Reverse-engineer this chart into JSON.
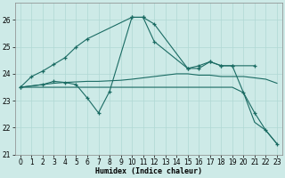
{
  "xlabel": "Humidex (Indice chaleur)",
  "xlim": [
    -0.5,
    23.5
  ],
  "ylim": [
    21.0,
    26.65
  ],
  "yticks": [
    21,
    22,
    23,
    24,
    25,
    26
  ],
  "xticks": [
    0,
    1,
    2,
    3,
    4,
    5,
    6,
    7,
    8,
    9,
    10,
    11,
    12,
    13,
    14,
    15,
    16,
    17,
    18,
    19,
    20,
    21,
    22,
    23
  ],
  "bg_color": "#cdeae7",
  "grid_color": "#b0d8d4",
  "line_color": "#1a6b63",
  "lineA_x": [
    0,
    1,
    2,
    3,
    4,
    5,
    6,
    10,
    11,
    12,
    15,
    16,
    17,
    18,
    19,
    21
  ],
  "lineA_y": [
    23.5,
    23.9,
    24.1,
    24.35,
    24.6,
    25.0,
    25.3,
    26.1,
    26.1,
    25.85,
    24.2,
    24.3,
    24.45,
    24.3,
    24.3,
    24.3
  ],
  "lineB_x": [
    0,
    2,
    3,
    4,
    5,
    6,
    7,
    8,
    9,
    10,
    11,
    12,
    13,
    14,
    15,
    16,
    17,
    18,
    19,
    20,
    21,
    22,
    23
  ],
  "lineB_y": [
    23.5,
    23.6,
    23.65,
    23.68,
    23.7,
    23.72,
    23.72,
    23.74,
    23.76,
    23.8,
    23.85,
    23.9,
    23.95,
    24.0,
    24.0,
    23.95,
    23.95,
    23.9,
    23.9,
    23.9,
    23.85,
    23.8,
    23.65
  ],
  "lineC_x": [
    0,
    2,
    3,
    4,
    5,
    6,
    7,
    8,
    10,
    11,
    12,
    15,
    16,
    17,
    18,
    19,
    20,
    21,
    22,
    23
  ],
  "lineC_y": [
    23.5,
    23.6,
    23.72,
    23.68,
    23.6,
    23.1,
    22.55,
    23.35,
    26.1,
    26.1,
    25.2,
    24.2,
    24.2,
    24.45,
    24.3,
    24.3,
    23.3,
    22.55,
    21.9,
    21.4
  ],
  "lineD_x": [
    0,
    19,
    20,
    21,
    22,
    23
  ],
  "lineD_y": [
    23.5,
    23.5,
    23.3,
    22.2,
    21.9,
    21.4
  ]
}
